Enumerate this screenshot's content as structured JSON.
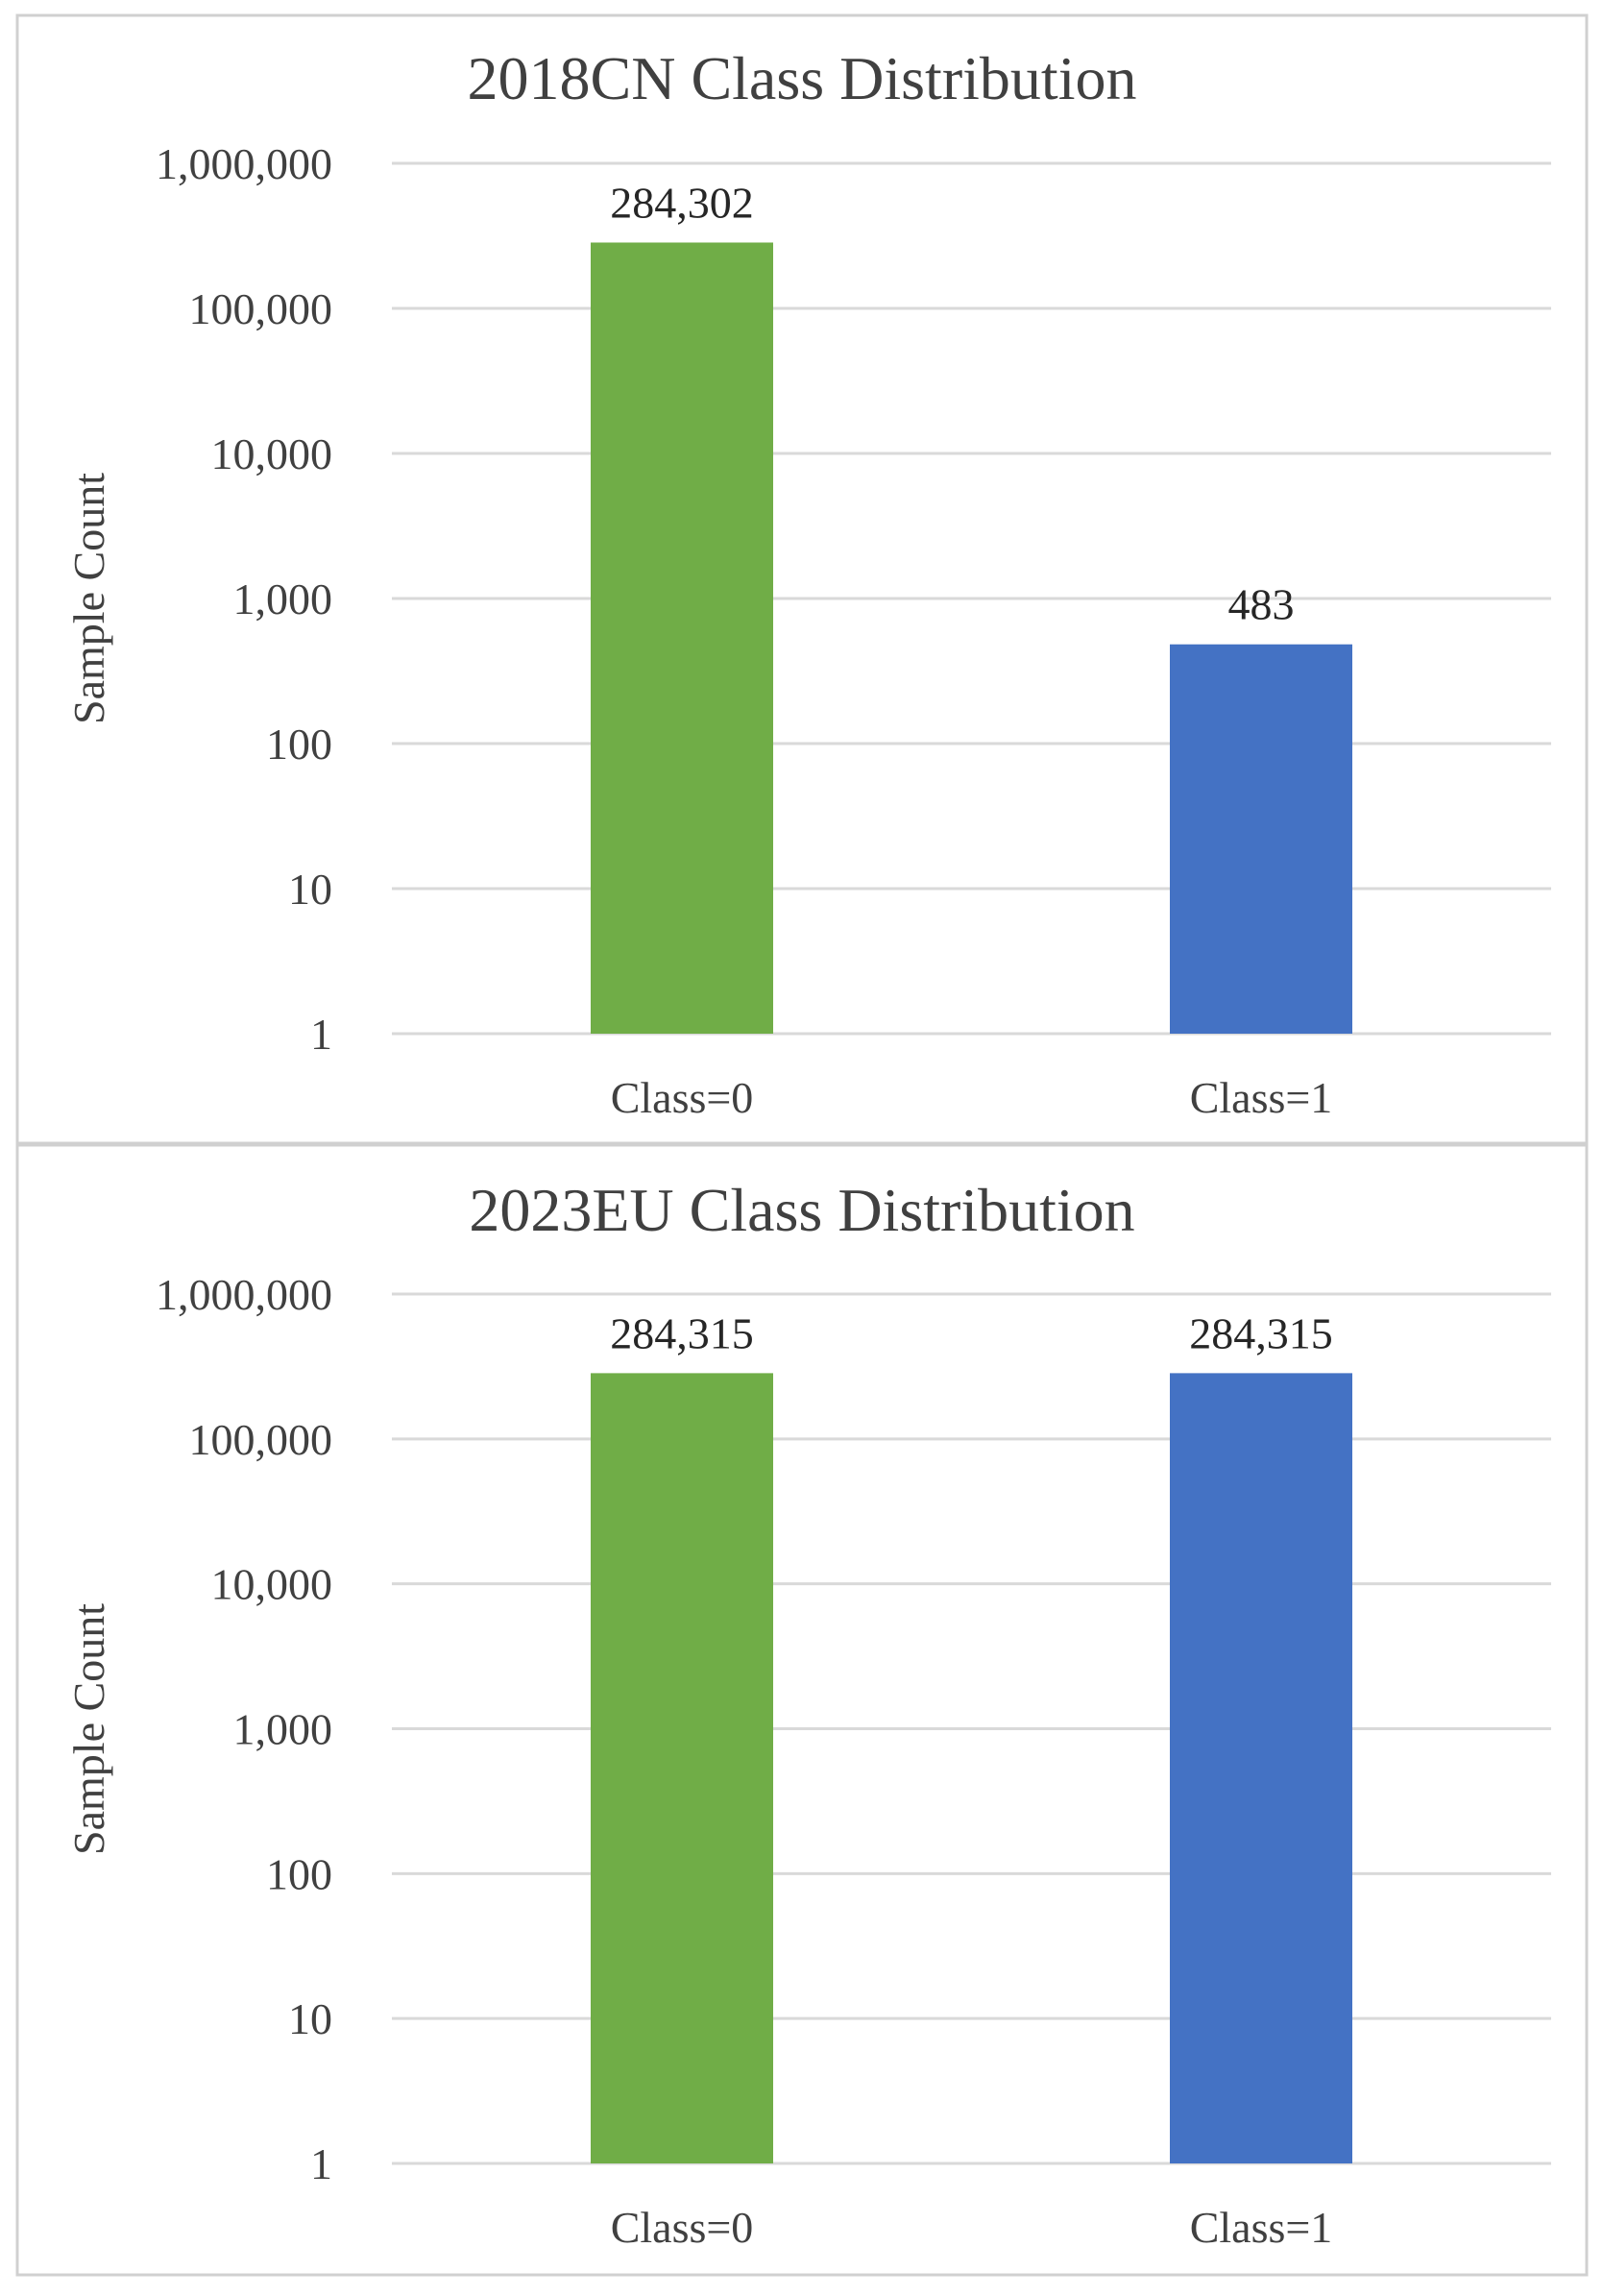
{
  "chart_data": [
    {
      "type": "bar",
      "title": "2018CN Class Distribution",
      "ylabel": "Sample Count",
      "xlabel": "",
      "yscale": "log",
      "ylim": [
        1,
        1000000
      ],
      "yticks": [
        "1",
        "10",
        "100",
        "1,000",
        "10,000",
        "100,000",
        "1,000,000"
      ],
      "categories": [
        "Class=0",
        "Class=1"
      ],
      "values": [
        284302,
        483
      ],
      "value_labels": [
        "284,302",
        "483"
      ],
      "colors": [
        "#70ad47",
        "#4472c4"
      ],
      "grid": true
    },
    {
      "type": "bar",
      "title": "2023EU Class Distribution",
      "ylabel": "Sample Count",
      "xlabel": "",
      "yscale": "log",
      "ylim": [
        1,
        1000000
      ],
      "yticks": [
        "1",
        "10",
        "100",
        "1,000",
        "10,000",
        "100,000",
        "1,000,000"
      ],
      "categories": [
        "Class=0",
        "Class=1"
      ],
      "values": [
        284315,
        284315
      ],
      "value_labels": [
        "284,315",
        "284,315"
      ],
      "colors": [
        "#70ad47",
        "#4472c4"
      ],
      "grid": true
    }
  ]
}
